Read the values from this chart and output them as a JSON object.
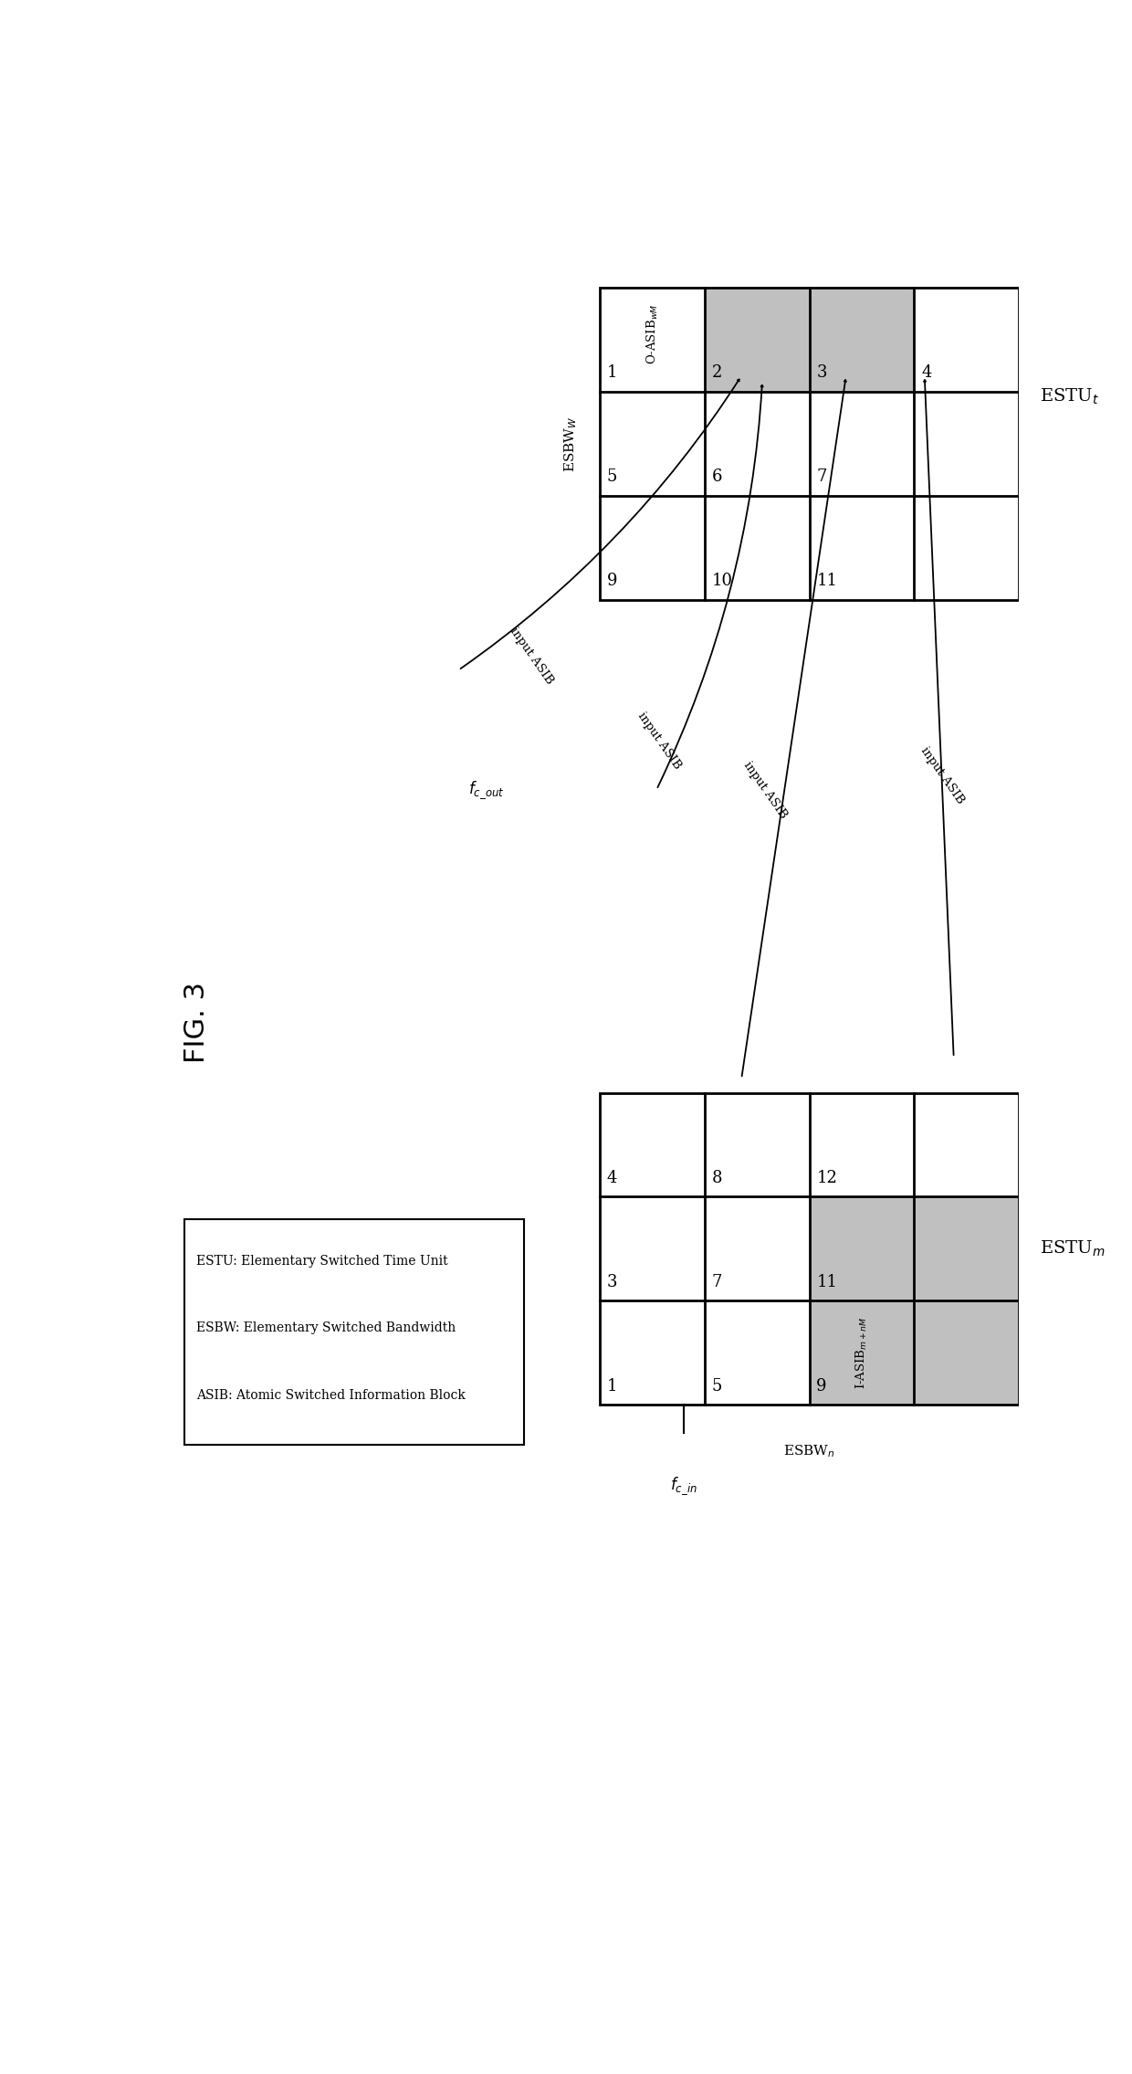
{
  "fig_label": "FIG. 3",
  "legend_lines": [
    "ESTU: Elementary Switched Time Unit",
    "ESBW: Elementary Switched Bandwidth",
    "ASIB: Atomic Switched Information Block"
  ],
  "gray_color": "#c0c0c0",
  "line_color": "#000000",
  "background_color": "#ffffff",
  "top_numbers": {
    "row0": [
      "1",
      "2",
      "3",
      "4"
    ],
    "row1": [
      "5",
      "6",
      "7",
      ""
    ],
    "row2": [
      "9",
      "10",
      "11",
      ""
    ]
  },
  "bottom_numbers": {
    "row2": [
      "4",
      "8",
      "12",
      ""
    ],
    "row1": [
      "3",
      "7",
      "11",
      ""
    ],
    "row0": [
      "1",
      "5",
      "9",
      ""
    ]
  }
}
